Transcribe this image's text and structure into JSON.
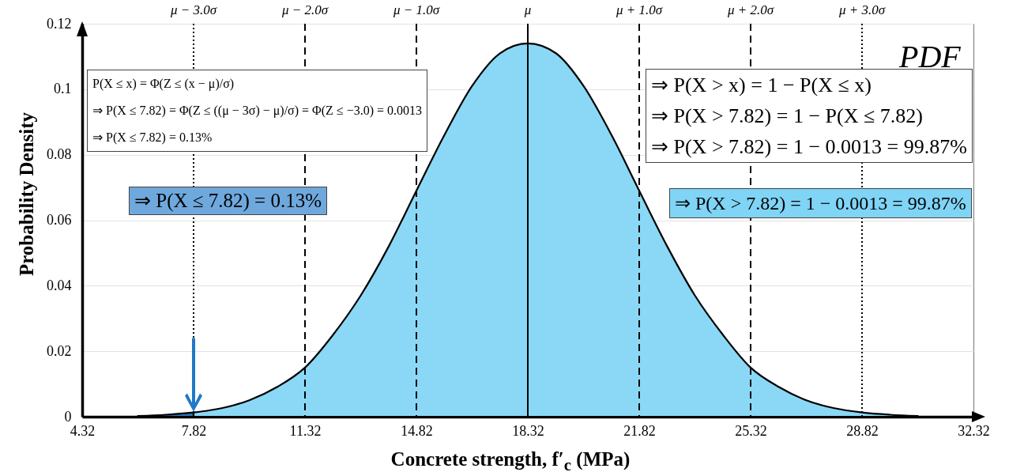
{
  "chart_data": {
    "type": "area",
    "xlabel": "Concrete strength, f′$_{c}$ (MPa)",
    "ylabel": "Probability Density",
    "series": [
      {
        "color": "#2e75b6",
        "x": [
          6.07,
          6.95,
          7.82
        ],
        "values": [
          0.0002,
          0.0006,
          0.0013
        ]
      },
      {
        "color": "#8ad8f6",
        "x": [
          7.82,
          8.7,
          9.57,
          10.45,
          11.32,
          12.2,
          13.07,
          13.95,
          14.82,
          15.7,
          16.57,
          17.45,
          18.32,
          19.2,
          20.07,
          20.95,
          21.82,
          22.7,
          23.57,
          24.45,
          25.32,
          26.2,
          27.07,
          27.95,
          28.82,
          29.7,
          30.57
        ],
        "values": [
          0.0013,
          0.0026,
          0.005,
          0.0091,
          0.015,
          0.025,
          0.037,
          0.052,
          0.069,
          0.086,
          0.101,
          0.111,
          0.114,
          0.111,
          0.101,
          0.086,
          0.069,
          0.052,
          0.037,
          0.025,
          0.015,
          0.0091,
          0.005,
          0.0026,
          0.0013,
          0.0006,
          0.0002
        ]
      }
    ],
    "xlim": [
      4.32,
      32.32
    ],
    "ylim": [
      0,
      0.12
    ],
    "xticks": [
      4.32,
      7.82,
      11.32,
      14.82,
      18.32,
      21.82,
      25.32,
      28.82,
      32.32
    ],
    "yticks": [
      0,
      0.02,
      0.04,
      0.06,
      0.08,
      0.1,
      0.12
    ],
    "grid": "y",
    "ref_lines": [
      {
        "axis": "x",
        "value": 7.82,
        "label": "μ − 3.0σ",
        "line_style": "dotted"
      },
      {
        "axis": "x",
        "value": 11.32,
        "label": "μ − 2.0σ",
        "line_style": "dashed"
      },
      {
        "axis": "x",
        "value": 14.82,
        "label": "μ − 1.0σ",
        "line_style": "dashed"
      },
      {
        "axis": "x",
        "value": 18.32,
        "label": "μ",
        "line_style": "solid"
      },
      {
        "axis": "x",
        "value": 21.82,
        "label": "μ + 1.0σ",
        "line_style": "dashed"
      },
      {
        "axis": "x",
        "value": 25.32,
        "label": "μ + 2.0σ",
        "line_style": "dashed"
      },
      {
        "axis": "x",
        "value": 28.82,
        "label": "μ + 3.0σ",
        "line_style": "dotted"
      }
    ],
    "annotations": [
      "P(X ≤ x) = Φ(Z ≤ (x − μ)/σ)\n⇒ P(X ≤ 7.82) = Φ(Z ≤ ((μ − 3σ) − μ)/σ) = Φ(Z ≤ −3.0) = 0.0013\n⇒ P(X ≤ 7.82) = 0.13%",
      "⇒ P(X ≤ 7.82) = 0.13%",
      "PDF",
      "⇒ P(X > x) = 1 − P(X ≤ x)\n⇒ P(X > 7.82) = 1 − P(X ≤ 7.82)\n⇒ P(X > 7.82) = 1 − 0.0013 = 99.87%",
      "⇒ P(X > 7.82) = 1 − 0.0013 = 99.87%"
    ]
  }
}
